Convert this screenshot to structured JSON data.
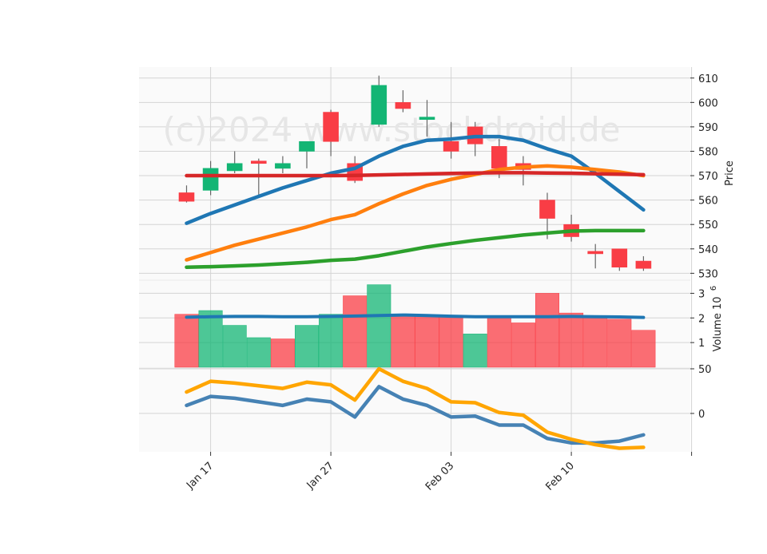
{
  "chart_data": {
    "type": "candlestick",
    "watermark": "(c)2024 www.stockdroid.de",
    "x_tick_labels": [
      "Jan 17",
      "Jan 27",
      "Feb 03",
      "Feb 10"
    ],
    "dates": [
      "Jan 16",
      "Jan 17",
      "Jan 21",
      "Jan 22",
      "Jan 23",
      "Jan 24",
      "Jan 27",
      "Jan 28",
      "Jan 29",
      "Jan 30",
      "Jan 31",
      "Feb 03",
      "Feb 04",
      "Feb 05",
      "Feb 06",
      "Feb 07",
      "Feb 10",
      "Feb 11",
      "Feb 12",
      "Feb 13"
    ],
    "price_panel": {
      "ylabel": "Price",
      "yticks": [
        530,
        540,
        550,
        560,
        570,
        580,
        590,
        600,
        610
      ],
      "ylim": [
        527.5,
        614.5
      ],
      "colors": {
        "up": "#13b574",
        "down": "#f93d45",
        "wick": "#666666"
      },
      "candles": [
        {
          "o": 563,
          "h": 566,
          "l": 559,
          "c": 559.5
        },
        {
          "o": 564,
          "h": 576,
          "l": 562,
          "c": 573
        },
        {
          "o": 572,
          "h": 580,
          "l": 571,
          "c": 575
        },
        {
          "o": 576,
          "h": 577,
          "l": 562,
          "c": 575
        },
        {
          "o": 573,
          "h": 578,
          "l": 571,
          "c": 575
        },
        {
          "o": 580,
          "h": 584,
          "l": 573,
          "c": 584
        },
        {
          "o": 596,
          "h": 597,
          "l": 578,
          "c": 584
        },
        {
          "o": 575,
          "h": 578,
          "l": 567,
          "c": 568
        },
        {
          "o": 591,
          "h": 611,
          "l": 590,
          "c": 607
        },
        {
          "o": 600,
          "h": 605,
          "l": 596,
          "c": 597.5
        },
        {
          "o": 593,
          "h": 601,
          "l": 586,
          "c": 594
        },
        {
          "o": 584,
          "h": 592,
          "l": 577,
          "c": 580
        },
        {
          "o": 590,
          "h": 592,
          "l": 578,
          "c": 583
        },
        {
          "o": 582,
          "h": 585,
          "l": 569,
          "c": 573
        },
        {
          "o": 575,
          "h": 578,
          "l": 566,
          "c": 572.5
        },
        {
          "o": 560,
          "h": 563,
          "l": 544,
          "c": 552.5
        },
        {
          "o": 550,
          "h": 554,
          "l": 543,
          "c": 545
        },
        {
          "o": 539,
          "h": 542,
          "l": 532,
          "c": 538
        },
        {
          "o": 540,
          "h": 540,
          "l": 531,
          "c": 532.5
        },
        {
          "o": 535,
          "h": 537,
          "l": 531,
          "c": 532
        }
      ],
      "lines": [
        {
          "color": "#1f77b4",
          "values": [
            550.5,
            554.5,
            558,
            561.5,
            565,
            568,
            571,
            573,
            578,
            582,
            584.5,
            585,
            586,
            586,
            584.5,
            581,
            578,
            571,
            563.5,
            556
          ]
        },
        {
          "color": "#ff7f0e",
          "values": [
            535.5,
            538.5,
            541.5,
            544,
            546.5,
            549,
            552,
            554,
            558.5,
            562.5,
            566,
            568.5,
            570.5,
            572.5,
            573.5,
            574,
            573.5,
            572.5,
            571.5,
            570
          ]
        },
        {
          "color": "#2ca02c",
          "values": [
            532.5,
            532.7,
            533,
            533.4,
            533.9,
            534.5,
            535.3,
            535.8,
            537.2,
            539,
            540.8,
            542.2,
            543.5,
            544.6,
            545.7,
            546.5,
            547.3,
            547.5,
            547.5,
            547.5
          ]
        },
        {
          "color": "#d62728",
          "values": [
            570,
            570,
            570,
            570,
            570,
            570,
            570,
            570.1,
            570.3,
            570.5,
            570.7,
            570.9,
            571.1,
            571.2,
            571.2,
            571.1,
            571,
            570.8,
            570.6,
            570.4
          ]
        }
      ]
    },
    "volume_panel": {
      "ylabel": "Volume  10",
      "ylabel_exp": "6",
      "yticks": [
        1,
        2,
        3
      ],
      "ylim": [
        0,
        3.5
      ],
      "colors": {
        "up": "#13b574",
        "down": "#f93d45"
      },
      "bars": [
        {
          "v": 2.15,
          "dir": "down"
        },
        {
          "v": 2.3,
          "dir": "up"
        },
        {
          "v": 1.7,
          "dir": "up"
        },
        {
          "v": 1.2,
          "dir": "up"
        },
        {
          "v": 1.15,
          "dir": "down"
        },
        {
          "v": 1.7,
          "dir": "up"
        },
        {
          "v": 2.15,
          "dir": "up"
        },
        {
          "v": 2.9,
          "dir": "down"
        },
        {
          "v": 3.35,
          "dir": "up"
        },
        {
          "v": 2.15,
          "dir": "down"
        },
        {
          "v": 2.1,
          "dir": "down"
        },
        {
          "v": 2.05,
          "dir": "down"
        },
        {
          "v": 1.35,
          "dir": "up"
        },
        {
          "v": 2.05,
          "dir": "down"
        },
        {
          "v": 1.8,
          "dir": "down"
        },
        {
          "v": 3.0,
          "dir": "down"
        },
        {
          "v": 2.2,
          "dir": "down"
        },
        {
          "v": 2.0,
          "dir": "down"
        },
        {
          "v": 1.95,
          "dir": "down"
        },
        {
          "v": 1.5,
          "dir": "down"
        }
      ],
      "ma_line": {
        "color": "#1f77b4",
        "values": [
          2.03,
          2.05,
          2.06,
          2.06,
          2.05,
          2.05,
          2.06,
          2.08,
          2.1,
          2.12,
          2.1,
          2.07,
          2.05,
          2.05,
          2.05,
          2.05,
          2.06,
          2.05,
          2.04,
          2.02
        ]
      }
    },
    "oscillator_panel": {
      "yticks": [
        0,
        50
      ],
      "ylim": [
        -43,
        50
      ],
      "lines": [
        {
          "color": "#4682b4",
          "values": [
            9,
            19,
            17,
            13,
            9,
            16,
            13,
            -4,
            30,
            16,
            9,
            -4,
            -3,
            -13,
            -13,
            -28,
            -33,
            -33,
            -31,
            -24
          ]
        },
        {
          "color": "#ffa500",
          "values": [
            24,
            36,
            34,
            31,
            28,
            35,
            32,
            15,
            50,
            36,
            28,
            13,
            12,
            1,
            -2,
            -21,
            -29,
            -35,
            -39,
            -38
          ]
        }
      ]
    }
  }
}
